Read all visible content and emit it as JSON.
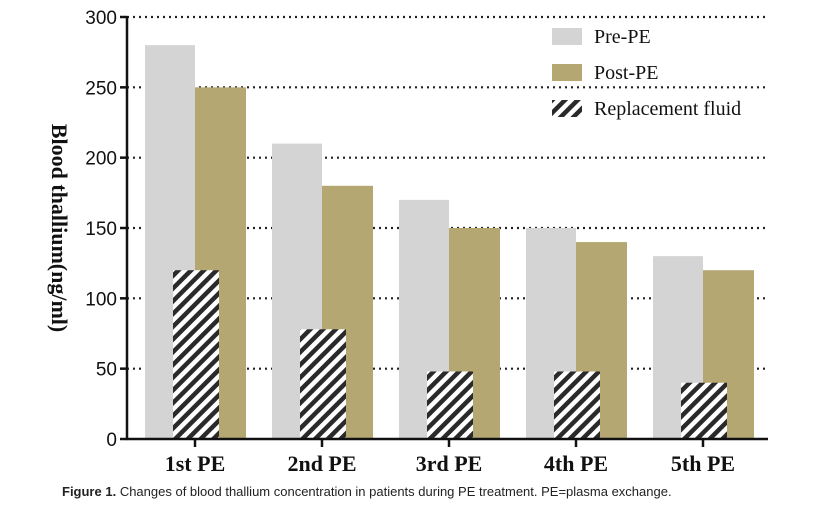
{
  "chart_data": {
    "type": "bar",
    "categories": [
      "1st PE",
      "2nd PE",
      "3rd PE",
      "4th PE",
      "5th PE"
    ],
    "series": [
      {
        "name": "Pre-PE",
        "values": [
          280,
          210,
          170,
          150,
          130
        ],
        "color": "#d4d4d4"
      },
      {
        "name": "Post-PE",
        "values": [
          250,
          180,
          150,
          140,
          120
        ],
        "color": "#b5a772"
      },
      {
        "name": "Replacement fluid",
        "values": [
          120,
          78,
          48,
          48,
          40
        ],
        "pattern": "diagonal-hatch"
      }
    ],
    "title": "",
    "xlabel": "",
    "ylabel": "Blood thallium(ng/ml)",
    "ylim": [
      0,
      300
    ],
    "yticks": [
      0,
      50,
      100,
      150,
      200,
      250,
      300
    ],
    "grid": "dotted horizontal",
    "legend_position": "top-right"
  },
  "caption": {
    "label": "Figure 1.",
    "text": "Changes of blood thallium concentration in patients during PE treatment. PE=plasma exchange."
  }
}
